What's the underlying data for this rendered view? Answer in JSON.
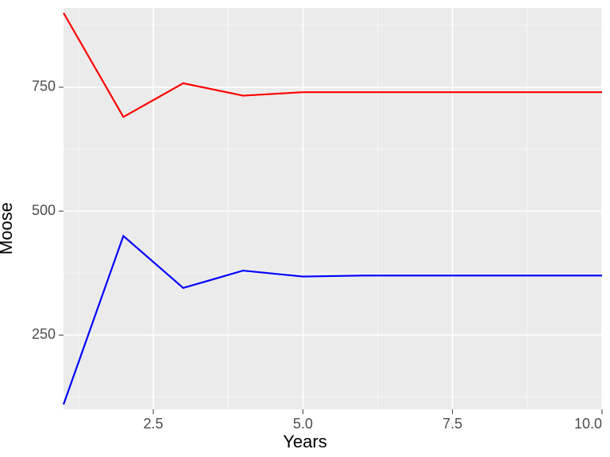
{
  "chart": {
    "type": "line",
    "ylabel": "Moose",
    "xlabel": "Years",
    "label_fontsize": 22,
    "tick_fontsize": 18,
    "panel_background": "#ebebeb",
    "grid_major_color": "#ffffff",
    "grid_minor_color": "#ffffff",
    "grid_major_width": 1.6,
    "grid_minor_width": 0.6,
    "line_width": 2.2,
    "xlim": [
      1,
      10
    ],
    "ylim": [
      100,
      910
    ],
    "x_ticks": [
      2.5,
      5.0,
      7.5,
      10.0
    ],
    "x_tick_labels": [
      "2.5",
      "5.0",
      "7.5",
      "10.0"
    ],
    "y_ticks": [
      250,
      500,
      750
    ],
    "y_tick_labels": [
      "250",
      "500",
      "750"
    ],
    "x_minor_gridlines": [
      1.25,
      3.75,
      6.25,
      8.75
    ],
    "y_minor_gridlines": [
      125,
      375,
      625,
      875
    ],
    "series": [
      {
        "name": "series-red",
        "color": "#ff0000",
        "x": [
          1,
          2,
          3,
          4,
          5,
          6,
          7,
          8,
          9,
          10
        ],
        "y": [
          900,
          690,
          758,
          733,
          740,
          740,
          740,
          740,
          740,
          740
        ]
      },
      {
        "name": "series-blue",
        "color": "#0000ff",
        "x": [
          1,
          2,
          3,
          4,
          5,
          6,
          7,
          8,
          9,
          10
        ],
        "y": [
          110,
          450,
          345,
          380,
          368,
          370,
          370,
          370,
          370,
          370
        ]
      }
    ]
  }
}
